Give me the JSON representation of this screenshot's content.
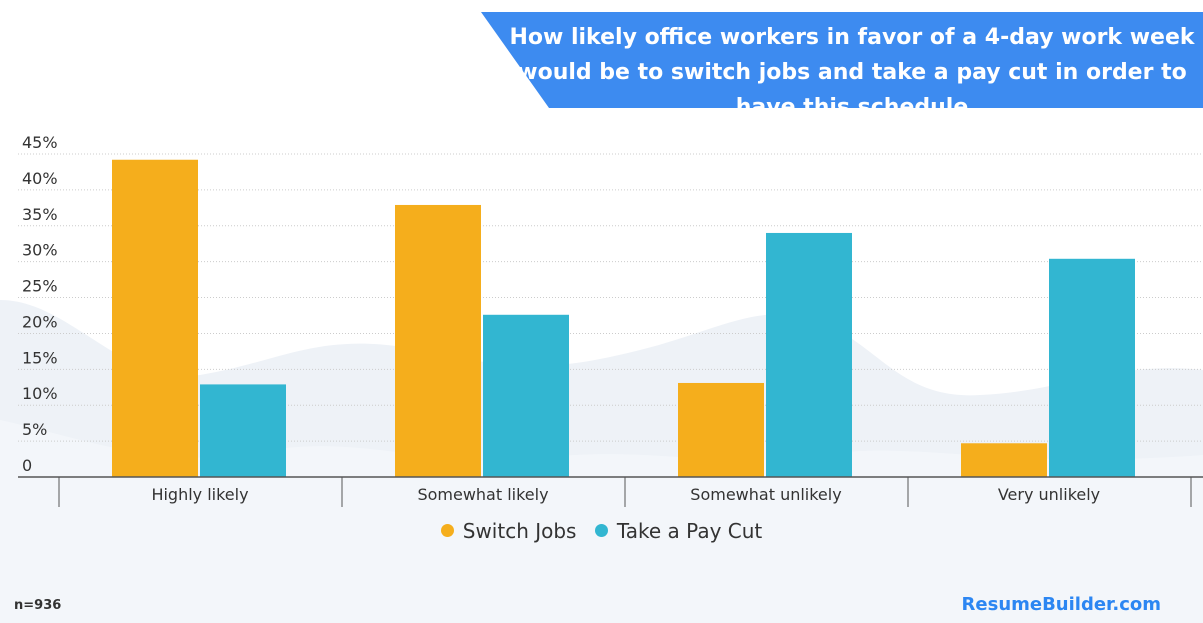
{
  "title": "How likely office workers in favor of a 4-day work week would be to switch jobs and take a pay cut in order to have this schedule",
  "footnote": "n=936",
  "brand": "ResumeBuilder.com",
  "colors": {
    "switch": "#f5ae1c",
    "paycut": "#32b6d1",
    "banner": "#3d8bf0",
    "grid": "#cccccc",
    "axis": "#555555",
    "waves": "#e3e8ef"
  },
  "chart_data": {
    "type": "bar",
    "categories": [
      "Highly likely",
      "Somewhat likely",
      "Somewhat unlikely",
      "Very unlikely"
    ],
    "series": [
      {
        "name": "Switch Jobs",
        "values": [
          44.2,
          37.9,
          13.1,
          4.7
        ]
      },
      {
        "name": "Take a Pay Cut",
        "values": [
          12.9,
          22.6,
          34.0,
          30.4
        ]
      }
    ],
    "y_ticks": [
      "0",
      "5%",
      "10%",
      "15%",
      "20%",
      "25%",
      "30%",
      "35%",
      "40%",
      "45%"
    ],
    "ylim": [
      0,
      45
    ],
    "grid": true,
    "legend_position": "bottom-center"
  }
}
